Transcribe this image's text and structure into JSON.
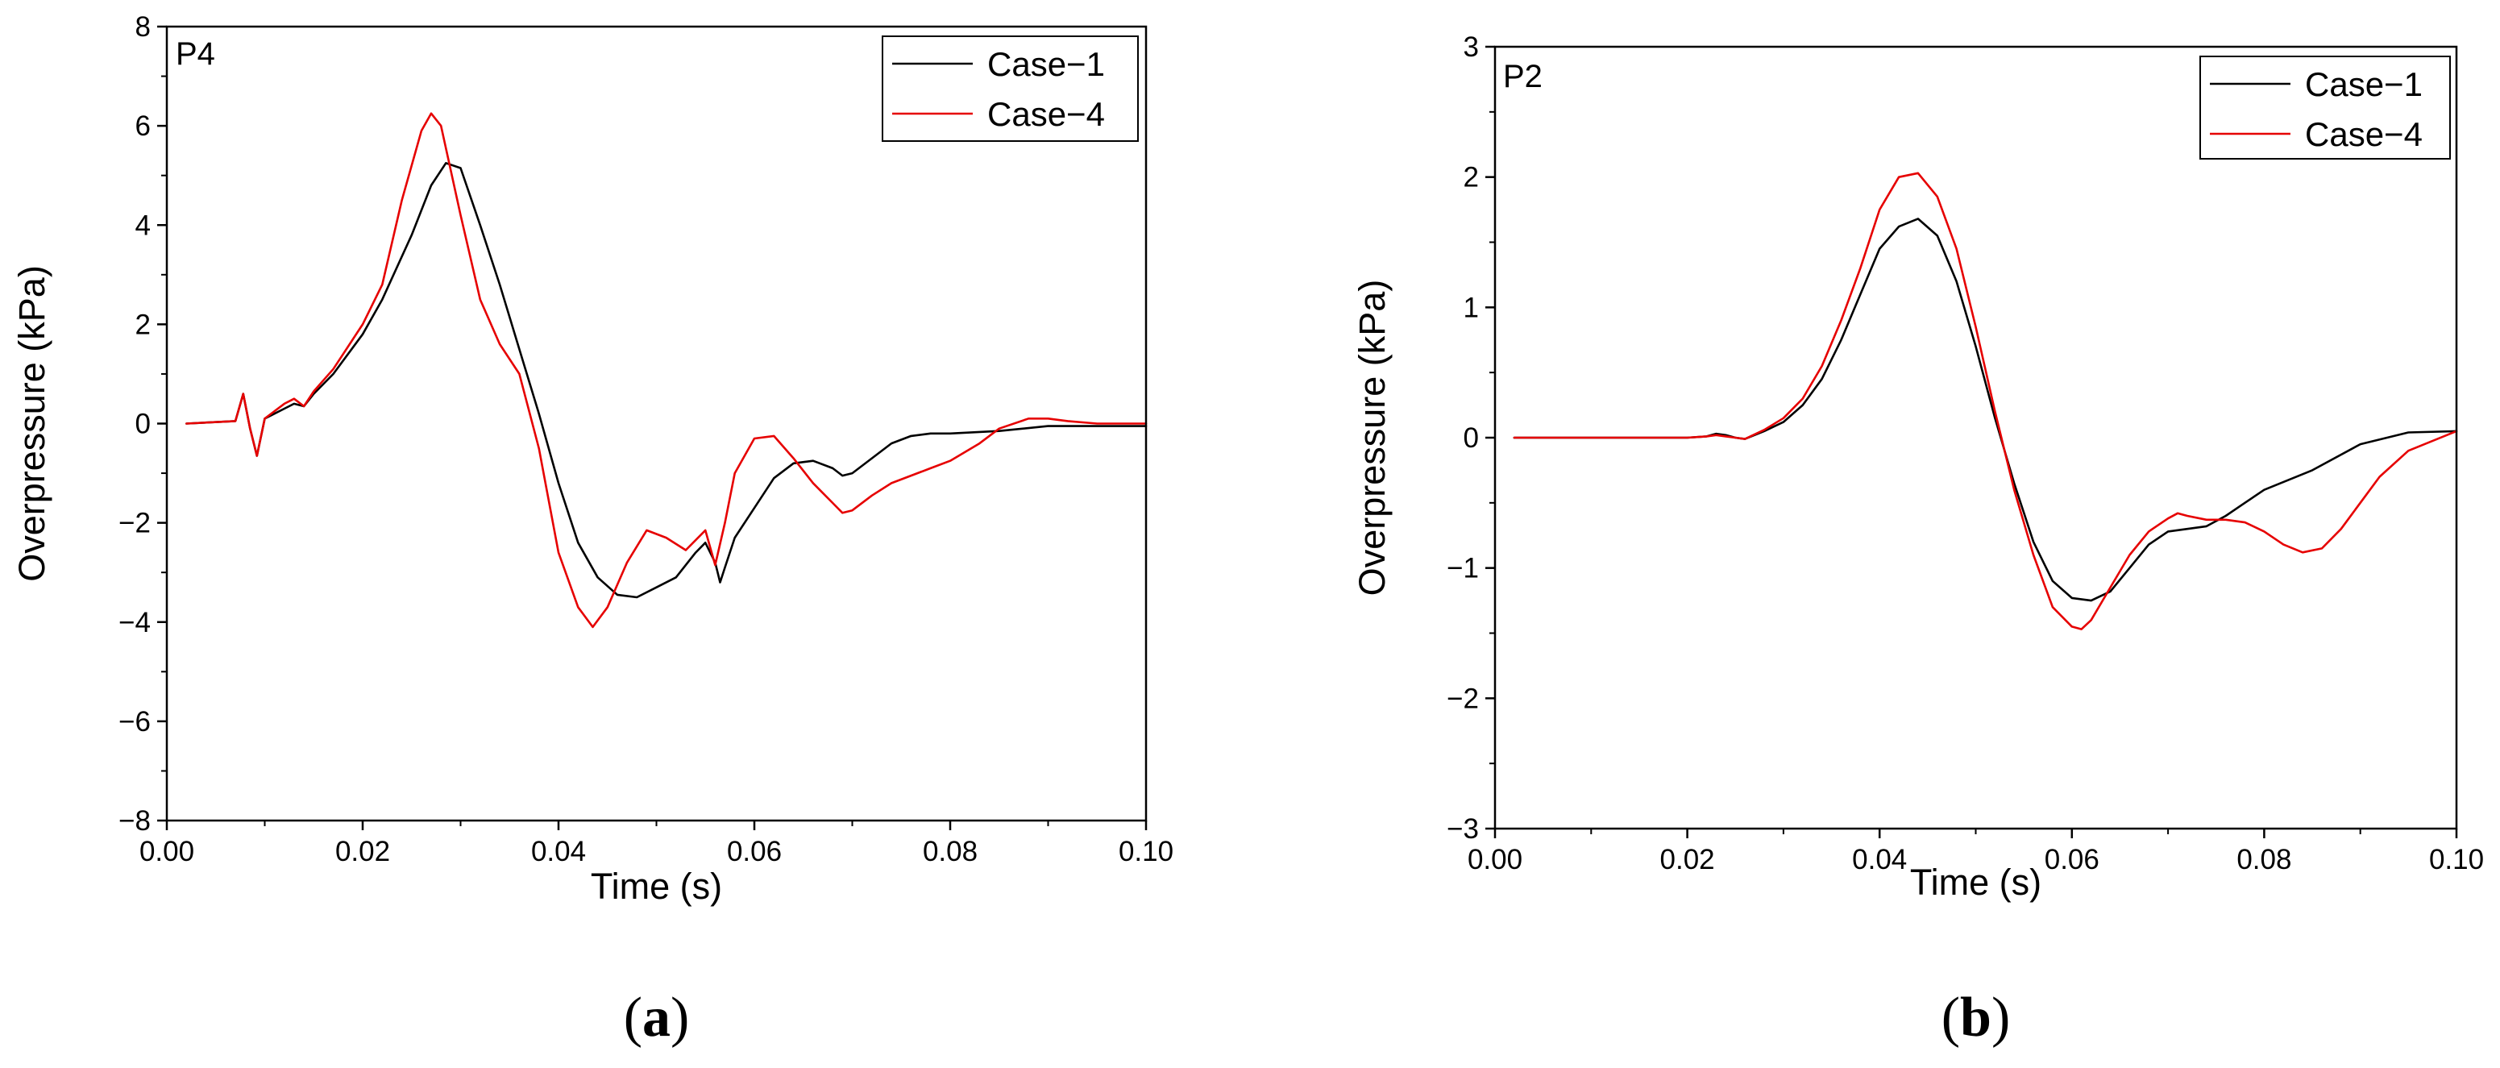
{
  "chart_data": [
    {
      "type": "line",
      "panel_label": "P4",
      "caption": {
        "open": "(",
        "letter": "a",
        "close": ")"
      },
      "xlabel": "Time (s)",
      "ylabel": "Overpressure (kPa)",
      "xlim": [
        0.0,
        0.1
      ],
      "ylim": [
        -8,
        8
      ],
      "xticks": [
        "0.00",
        "0.02",
        "0.04",
        "0.06",
        "0.08",
        "0.10"
      ],
      "yticks": [
        "−8",
        "−6",
        "−4",
        "−2",
        "0",
        "2",
        "4",
        "6",
        "8"
      ],
      "grid": false,
      "legend_position": "top-right",
      "series": [
        {
          "name": "Case−1",
          "color": "#000000",
          "x": [
            0.002,
            0.007,
            0.0078,
            0.0085,
            0.0092,
            0.01,
            0.011,
            0.012,
            0.013,
            0.014,
            0.015,
            0.017,
            0.02,
            0.022,
            0.025,
            0.027,
            0.0285,
            0.03,
            0.032,
            0.034,
            0.036,
            0.038,
            0.04,
            0.042,
            0.044,
            0.046,
            0.048,
            0.05,
            0.052,
            0.054,
            0.055,
            0.056,
            0.0565,
            0.057,
            0.058,
            0.06,
            0.062,
            0.064,
            0.066,
            0.068,
            0.069,
            0.07,
            0.072,
            0.074,
            0.076,
            0.078,
            0.08,
            0.085,
            0.09,
            0.095,
            0.1
          ],
          "y": [
            0,
            0.05,
            0.6,
            -0.1,
            -0.65,
            0.1,
            0.2,
            0.3,
            0.4,
            0.35,
            0.6,
            1.0,
            1.8,
            2.5,
            3.8,
            4.8,
            5.25,
            5.15,
            4.0,
            2.8,
            1.5,
            0.2,
            -1.2,
            -2.4,
            -3.1,
            -3.45,
            -3.5,
            -3.3,
            -3.1,
            -2.6,
            -2.4,
            -2.8,
            -3.2,
            -2.9,
            -2.3,
            -1.7,
            -1.1,
            -0.8,
            -0.75,
            -0.9,
            -1.05,
            -1.0,
            -0.7,
            -0.4,
            -0.25,
            -0.2,
            -0.2,
            -0.15,
            -0.05,
            -0.05,
            -0.05
          ]
        },
        {
          "name": "Case−4",
          "color": "#e60000",
          "x": [
            0.002,
            0.007,
            0.0078,
            0.0085,
            0.0092,
            0.01,
            0.011,
            0.012,
            0.013,
            0.014,
            0.015,
            0.017,
            0.02,
            0.022,
            0.024,
            0.026,
            0.027,
            0.028,
            0.03,
            0.032,
            0.034,
            0.036,
            0.038,
            0.04,
            0.042,
            0.0435,
            0.045,
            0.047,
            0.049,
            0.051,
            0.053,
            0.055,
            0.056,
            0.057,
            0.058,
            0.06,
            0.062,
            0.064,
            0.066,
            0.068,
            0.069,
            0.07,
            0.072,
            0.074,
            0.076,
            0.078,
            0.08,
            0.083,
            0.085,
            0.088,
            0.09,
            0.092,
            0.095,
            0.1
          ],
          "y": [
            0,
            0.05,
            0.6,
            -0.1,
            -0.65,
            0.1,
            0.25,
            0.4,
            0.5,
            0.35,
            0.65,
            1.1,
            2.0,
            2.8,
            4.5,
            5.9,
            6.25,
            6.0,
            4.2,
            2.5,
            1.6,
            1.0,
            -0.5,
            -2.6,
            -3.7,
            -4.1,
            -3.7,
            -2.8,
            -2.15,
            -2.3,
            -2.55,
            -2.15,
            -2.85,
            -2.0,
            -1.0,
            -0.3,
            -0.25,
            -0.7,
            -1.2,
            -1.6,
            -1.8,
            -1.75,
            -1.45,
            -1.2,
            -1.05,
            -0.9,
            -0.75,
            -0.4,
            -0.1,
            0.1,
            0.1,
            0.05,
            0.0,
            0.0
          ]
        }
      ]
    },
    {
      "type": "line",
      "panel_label": "P2",
      "caption": {
        "open": "(",
        "letter": "b",
        "close": ")"
      },
      "xlabel": "Time (s)",
      "ylabel": "Overpressure (kPa)",
      "xlim": [
        0.0,
        0.1
      ],
      "ylim": [
        -3,
        3
      ],
      "xticks": [
        "0.00",
        "0.02",
        "0.04",
        "0.06",
        "0.08",
        "0.10"
      ],
      "yticks": [
        "−3",
        "−2",
        "−1",
        "0",
        "1",
        "2",
        "3"
      ],
      "grid": false,
      "legend_position": "top-right",
      "series": [
        {
          "name": "Case−1",
          "color": "#000000",
          "x": [
            0.002,
            0.02,
            0.022,
            0.023,
            0.024,
            0.025,
            0.026,
            0.028,
            0.03,
            0.032,
            0.034,
            0.036,
            0.038,
            0.04,
            0.042,
            0.044,
            0.046,
            0.048,
            0.05,
            0.052,
            0.054,
            0.056,
            0.058,
            0.06,
            0.062,
            0.064,
            0.066,
            0.068,
            0.07,
            0.072,
            0.074,
            0.076,
            0.078,
            0.08,
            0.085,
            0.09,
            0.095,
            0.1
          ],
          "y": [
            0,
            0,
            0.01,
            0.03,
            0.02,
            0.0,
            -0.01,
            0.05,
            0.12,
            0.25,
            0.45,
            0.75,
            1.1,
            1.45,
            1.62,
            1.68,
            1.55,
            1.2,
            0.7,
            0.15,
            -0.35,
            -0.8,
            -1.1,
            -1.23,
            -1.25,
            -1.18,
            -1.0,
            -0.82,
            -0.72,
            -0.7,
            -0.68,
            -0.6,
            -0.5,
            -0.4,
            -0.25,
            -0.05,
            0.04,
            0.05
          ]
        },
        {
          "name": "Case−4",
          "color": "#e60000",
          "x": [
            0.002,
            0.02,
            0.022,
            0.023,
            0.024,
            0.025,
            0.026,
            0.028,
            0.03,
            0.032,
            0.034,
            0.036,
            0.038,
            0.04,
            0.042,
            0.044,
            0.046,
            0.048,
            0.05,
            0.052,
            0.054,
            0.056,
            0.058,
            0.06,
            0.061,
            0.062,
            0.064,
            0.066,
            0.068,
            0.07,
            0.071,
            0.072,
            0.074,
            0.076,
            0.078,
            0.08,
            0.082,
            0.084,
            0.086,
            0.088,
            0.09,
            0.092,
            0.095,
            0.1
          ],
          "y": [
            0,
            0,
            0.01,
            0.02,
            0.01,
            0.0,
            -0.01,
            0.06,
            0.15,
            0.3,
            0.55,
            0.9,
            1.3,
            1.75,
            2.0,
            2.03,
            1.85,
            1.45,
            0.85,
            0.2,
            -0.4,
            -0.9,
            -1.3,
            -1.45,
            -1.47,
            -1.4,
            -1.15,
            -0.9,
            -0.72,
            -0.62,
            -0.58,
            -0.6,
            -0.63,
            -0.63,
            -0.65,
            -0.72,
            -0.82,
            -0.88,
            -0.85,
            -0.7,
            -0.5,
            -0.3,
            -0.1,
            0.05
          ]
        }
      ]
    }
  ]
}
